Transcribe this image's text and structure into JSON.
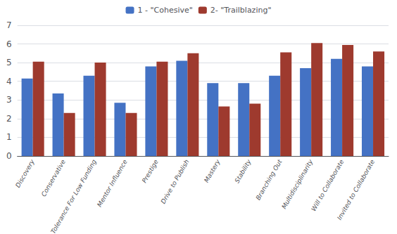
{
  "chart_data": {
    "type": "bar",
    "categories": [
      "Discovery",
      "Conservative",
      "Tolerance For Low Funding",
      "Mentor Influence",
      "Prestige",
      "Drive to Publish",
      "Mastery",
      "Stability",
      "Branching Out",
      "Multidisciplinarity",
      "Will to Collaborate",
      "Invited to Collaborate"
    ],
    "series": [
      {
        "name": "1 - \"Cohesive\"",
        "color": "#4472C4",
        "values": [
          4.15,
          3.35,
          4.3,
          2.85,
          4.8,
          5.1,
          3.9,
          3.9,
          4.3,
          4.7,
          5.2,
          4.8
        ]
      },
      {
        "name": "2- \"Trailblazing\"",
        "color": "#9E3A2E",
        "values": [
          5.05,
          2.3,
          5.0,
          2.3,
          5.05,
          5.5,
          2.65,
          2.8,
          5.55,
          6.05,
          5.95,
          5.6
        ]
      }
    ],
    "ylim": [
      0,
      7
    ],
    "yticks": [
      0,
      1,
      2,
      3,
      4,
      5,
      6,
      7
    ],
    "grid": true,
    "legend": "top"
  }
}
